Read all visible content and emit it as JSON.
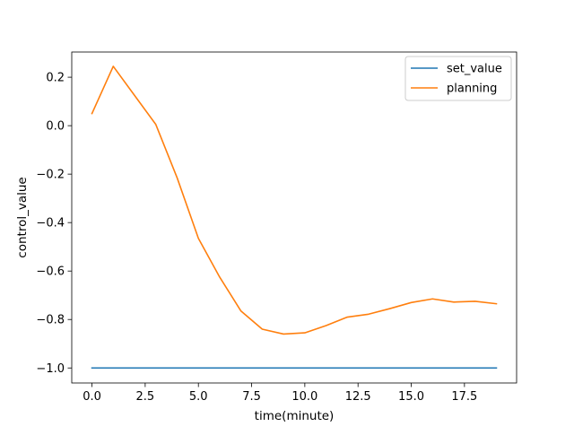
{
  "chart_data": {
    "type": "line",
    "title": "",
    "xlabel": "time(minute)",
    "ylabel": "control_value",
    "xlim": [
      -0.95,
      19.95
    ],
    "ylim": [
      -1.062,
      0.304
    ],
    "xticks": [
      0,
      2.5,
      5,
      7.5,
      10,
      12.5,
      15,
      17.5
    ],
    "xtick_labels": [
      "0.0",
      "2.5",
      "5.0",
      "7.5",
      "10.0",
      "12.5",
      "15.0",
      "17.5"
    ],
    "yticks": [
      0.2,
      0.0,
      -0.2,
      -0.4,
      -0.6,
      -0.8,
      -1.0
    ],
    "ytick_labels": [
      "0.2",
      "0.0",
      "−0.2",
      "−0.4",
      "−0.6",
      "−0.8",
      "−1.0"
    ],
    "grid": false,
    "legend_position": "top-right",
    "x": [
      0,
      1,
      2,
      3,
      4,
      5,
      6,
      7,
      8,
      9,
      10,
      11,
      12,
      13,
      14,
      15,
      16,
      17,
      18,
      19
    ],
    "series": [
      {
        "name": "set_value",
        "color": "#1f77b4",
        "values": [
          -1.0,
          -1.0,
          -1.0,
          -1.0,
          -1.0,
          -1.0,
          -1.0,
          -1.0,
          -1.0,
          -1.0,
          -1.0,
          -1.0,
          -1.0,
          -1.0,
          -1.0,
          -1.0,
          -1.0,
          -1.0,
          -1.0,
          -1.0
        ]
      },
      {
        "name": "planning",
        "color": "#ff7f0e",
        "values": [
          0.05,
          0.245,
          0.125,
          0.005,
          -0.215,
          -0.465,
          -0.625,
          -0.765,
          -0.84,
          -0.86,
          -0.855,
          -0.825,
          -0.79,
          -0.778,
          -0.755,
          -0.73,
          -0.715,
          -0.728,
          -0.725,
          -0.735
        ]
      }
    ]
  }
}
